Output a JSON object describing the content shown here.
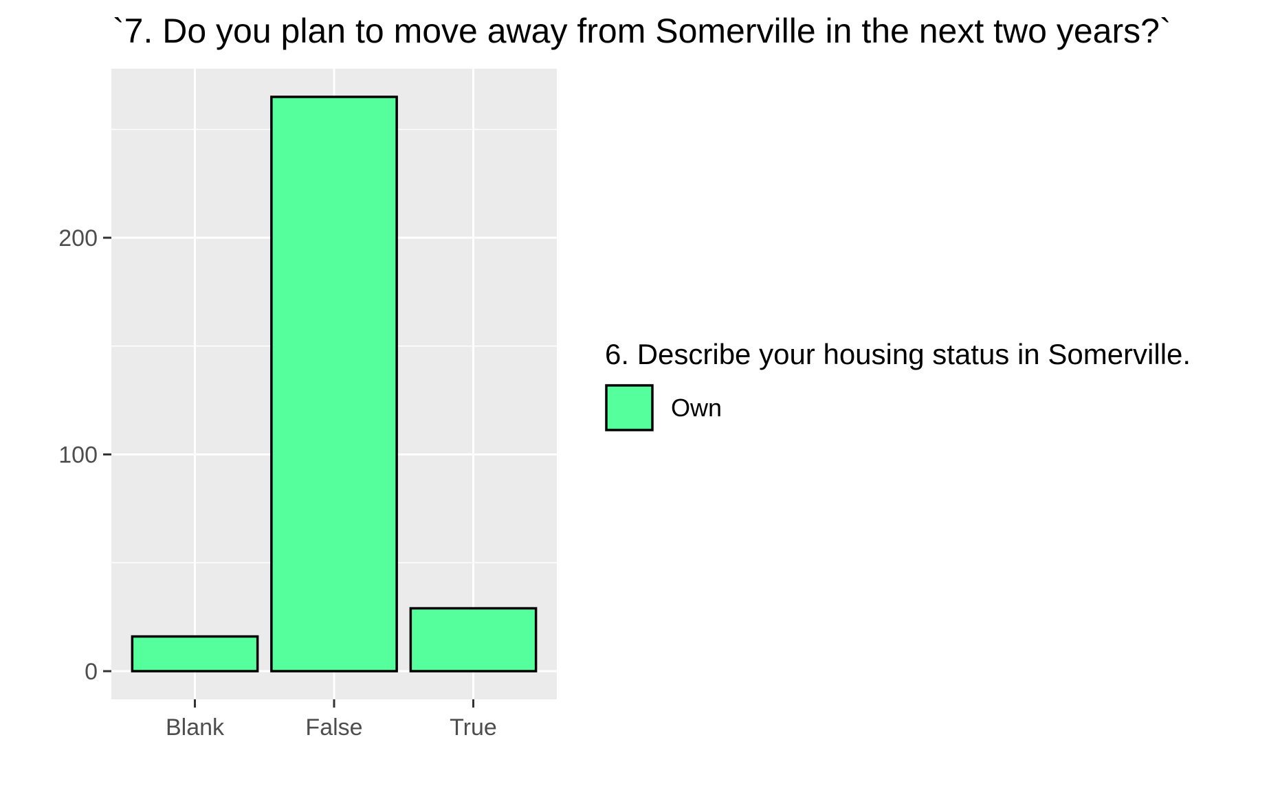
{
  "chart_data": {
    "type": "bar",
    "title": "`7. Do you plan to move away from Somerville in the next two years?`",
    "xlabel": "",
    "ylabel": "",
    "categories": [
      "Blank",
      "False",
      "True"
    ],
    "series": [
      {
        "name": "Own",
        "values": [
          16,
          265,
          29
        ]
      }
    ],
    "ylim": [
      -13,
      278
    ],
    "y_ticks": [
      0,
      100,
      200
    ],
    "y_minor_ticks": [
      50,
      150,
      250
    ],
    "grid": true,
    "legend": {
      "title": "6. Describe your housing status in Somerville.",
      "position": "right",
      "entries": [
        "Own"
      ]
    },
    "colors": {
      "bar_fill": "#55FF9B",
      "bar_stroke": "#000000",
      "panel_background": "#EBEBEB",
      "grid_line": "#FFFFFF",
      "tick_text": "#4D4D4D",
      "title_text": "#000000"
    }
  }
}
